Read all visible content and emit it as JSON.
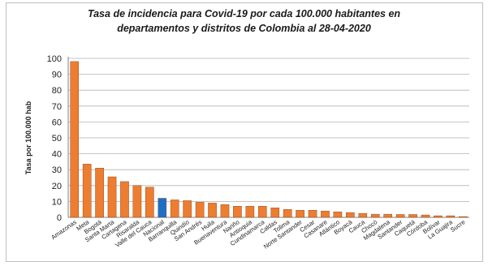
{
  "chart_data": {
    "type": "bar",
    "title_lines": [
      "Tasa de incidencia para Covid-19 por cada 100.000 habitantes en",
      "departamentos y distritos de Colombia al 28-04-2020"
    ],
    "xlabel": "",
    "ylabel": "Tasa por 100.000 hab",
    "ylim": [
      0,
      100
    ],
    "yticks": [
      0,
      10,
      20,
      30,
      40,
      50,
      60,
      70,
      80,
      90,
      100
    ],
    "grid": true,
    "bar_color": "#ed7d31",
    "highlight_color": "#1f6fc5",
    "highlight_category": "Nacional",
    "categories": [
      "Amazonas",
      "Meta",
      "Bogotá",
      "Santa Marta",
      "Cartagena",
      "Risaralda",
      "Valle del Cauca",
      "Nacional",
      "Barranquilla",
      "Quindío",
      "San Andrés",
      "Huila",
      "Buenaventura",
      "Nariño",
      "Antioquia",
      "Cundinamarca",
      "Caldas",
      "Tolima",
      "Norte Santander",
      "Cesar",
      "Casanare",
      "Atlántico",
      "Boyacá",
      "Cauca",
      "Chocó",
      "Magdalena",
      "Santander",
      "Caquetá",
      "Córdoba",
      "Bolívar",
      "La Guajira",
      "Sucre"
    ],
    "values": [
      98,
      33.5,
      31,
      25.5,
      22.5,
      20,
      19,
      12,
      11,
      10.5,
      9.5,
      9,
      8,
      7,
      7,
      7,
      6,
      5,
      4.5,
      4.5,
      4,
      3.5,
      3,
      2.5,
      2,
      2,
      1.8,
      1.8,
      1.5,
      1,
      1,
      0.5
    ]
  }
}
